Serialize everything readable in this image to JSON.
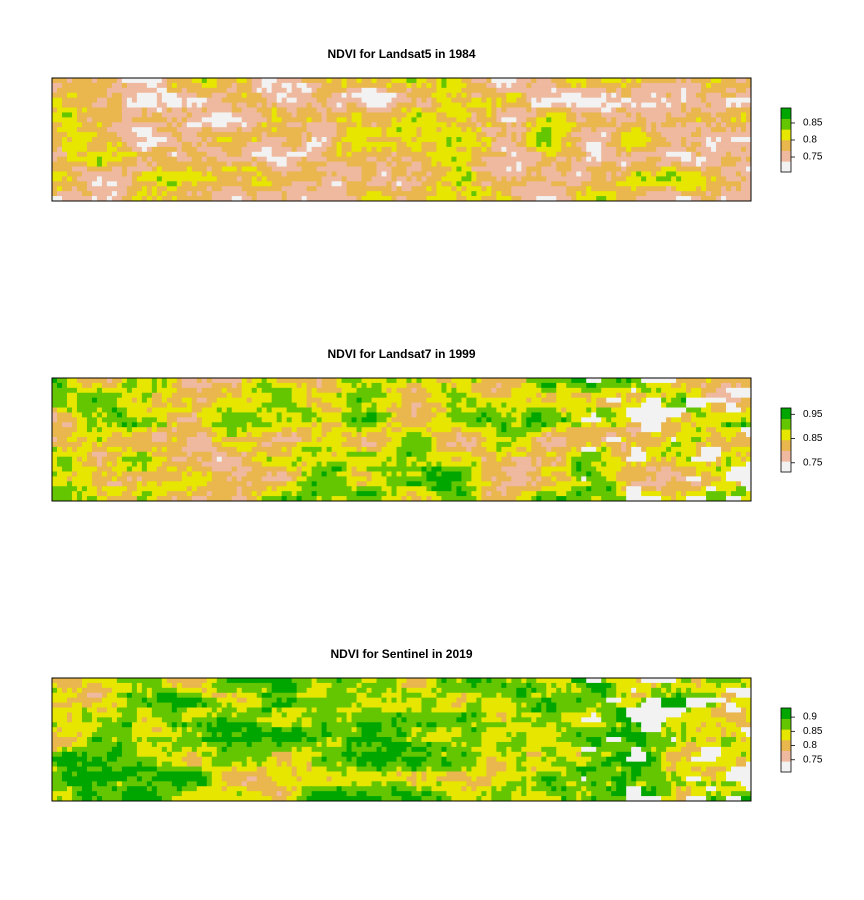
{
  "chart_data": [
    {
      "type": "raster",
      "title": "NDVI for Landsat5 in 1984",
      "colors": [
        "#F2F2F2",
        "#EEB99F",
        "#EAB64E",
        "#E6E600",
        "#63C600",
        "#00A600"
      ],
      "zlim": [
        0.706,
        0.894
      ],
      "zticks": [
        0.75,
        0.8,
        0.85
      ]
    },
    {
      "type": "raster",
      "title": "NDVI for Landsat7 in 1999",
      "colors": [
        "#F2F2F2",
        "#EEB99F",
        "#EAB64E",
        "#E6E600",
        "#63C600",
        "#00A600"
      ],
      "zlim": [
        0.712,
        0.976
      ],
      "zticks": [
        0.75,
        0.85,
        0.95
      ]
    },
    {
      "type": "raster",
      "title": "NDVI for Sentinel in 2019",
      "colors": [
        "#F2F2F2",
        "#EEB99F",
        "#EAB64E",
        "#E6E600",
        "#63C600",
        "#00A600"
      ],
      "zlim": [
        0.707,
        0.932
      ],
      "zticks": [
        0.75,
        0.8,
        0.85,
        0.9
      ]
    }
  ]
}
